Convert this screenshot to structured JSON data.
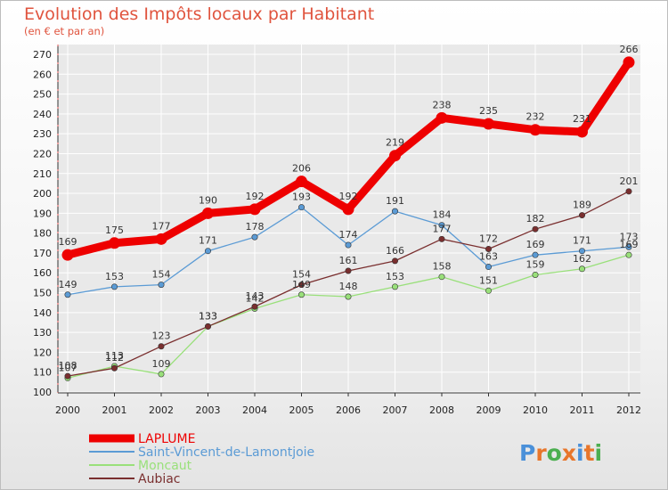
{
  "chart_data": {
    "type": "line",
    "title": "Evolution des Impôts locaux par Habitant",
    "subtitle": "(en € et par an)",
    "categories": [
      "2000",
      "2001",
      "2002",
      "2003",
      "2004",
      "2005",
      "2006",
      "2007",
      "2008",
      "2009",
      "2010",
      "2011",
      "2012"
    ],
    "ylim": [
      100,
      270
    ],
    "yticks": [
      100,
      110,
      120,
      130,
      140,
      150,
      160,
      170,
      180,
      190,
      200,
      210,
      220,
      230,
      240,
      250,
      260,
      270
    ],
    "grid": true,
    "legend_position": "bottom-left",
    "series": [
      {
        "name": "LAPLUME",
        "color": "#ee0000",
        "values": [
          169,
          175,
          177,
          190,
          192,
          206,
          192,
          219,
          238,
          235,
          232,
          231,
          266
        ]
      },
      {
        "name": "Saint-Vincent-de-Lamontjoie",
        "color": "#5b9bd5",
        "values": [
          149,
          153,
          154,
          171,
          178,
          193,
          174,
          191,
          184,
          163,
          169,
          171,
          173
        ]
      },
      {
        "name": "Moncaut",
        "color": "#99e07a",
        "values": [
          107,
          113,
          109,
          133,
          142,
          149,
          148,
          153,
          158,
          151,
          159,
          162,
          169
        ]
      },
      {
        "name": "Aubiac",
        "color": "#7a2f2f",
        "values": [
          108,
          112,
          123,
          133,
          143,
          154,
          161,
          166,
          177,
          172,
          182,
          189,
          201
        ]
      }
    ]
  },
  "logo": {
    "text": "Proxiti",
    "letter_colors": [
      "#4a90d9",
      "#e8762b",
      "#4caf50",
      "#e8762b",
      "#4a90d9",
      "#e8762b",
      "#4caf50"
    ]
  }
}
